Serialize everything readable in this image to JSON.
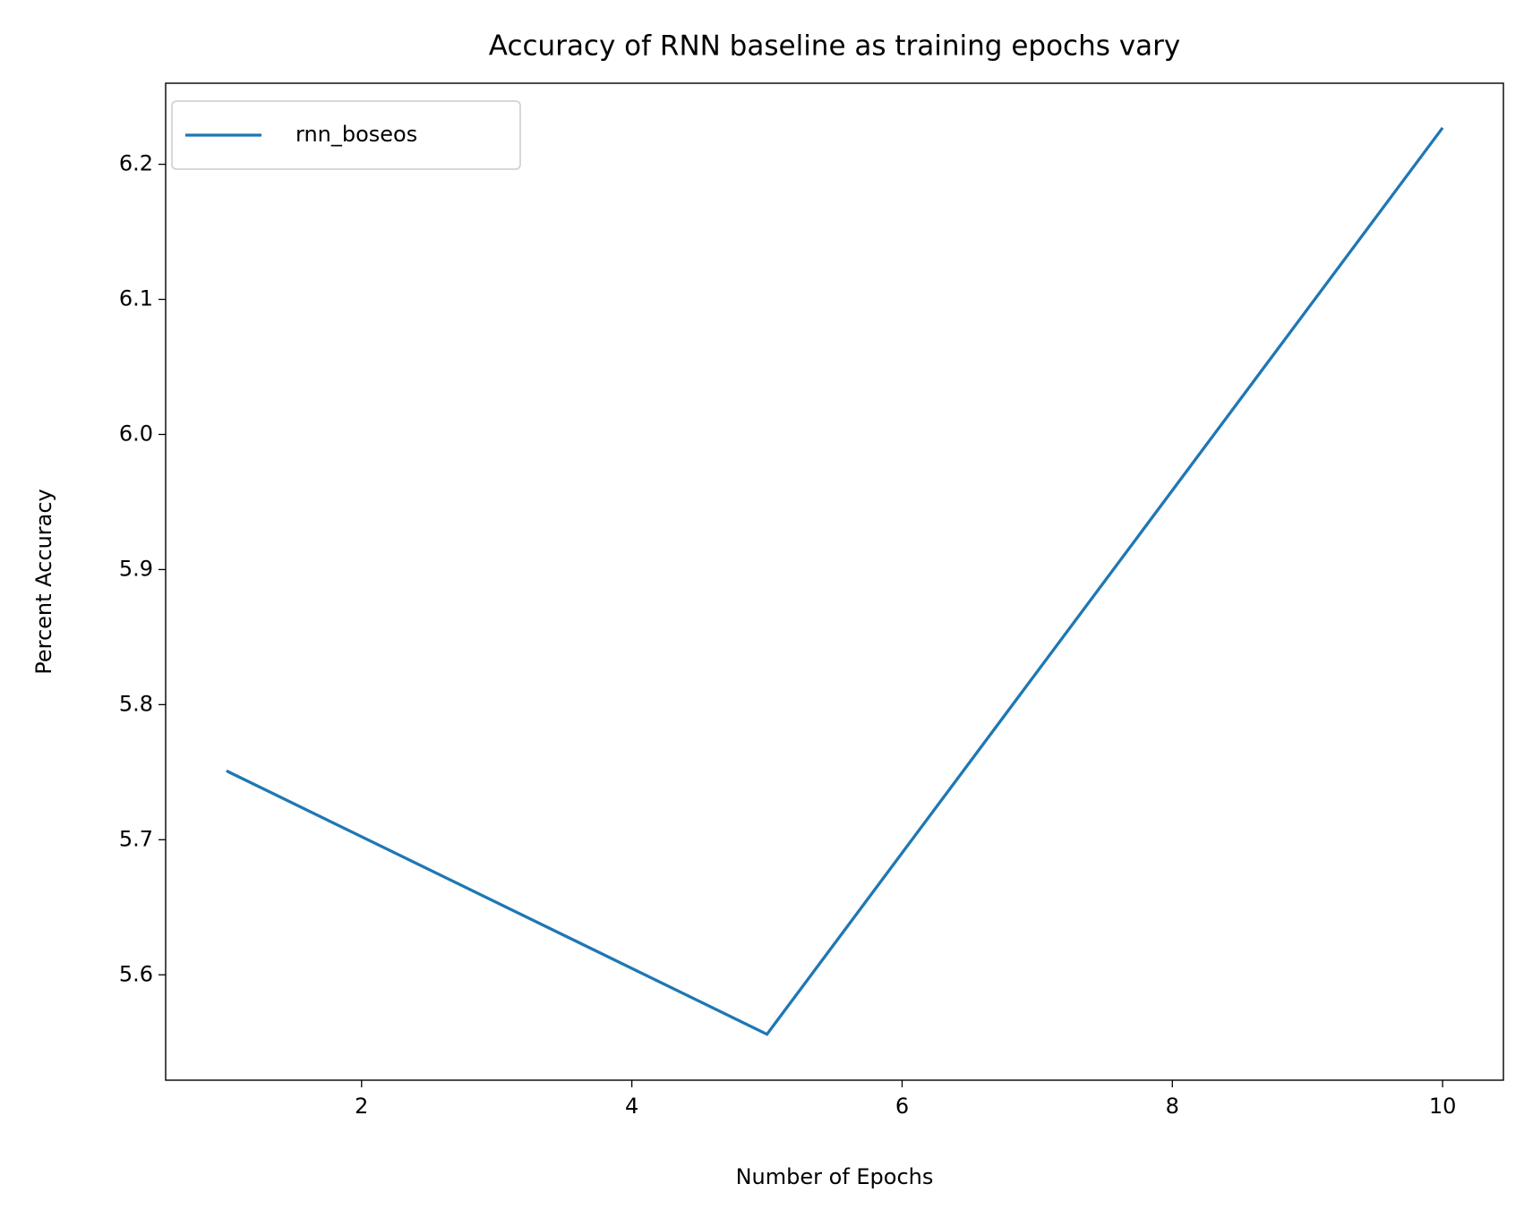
{
  "chart_data": {
    "type": "line",
    "title": "Accuracy of RNN baseline as training epochs vary",
    "x_label": "Number of Epochs",
    "y_label": "Percent Accuracy",
    "x": [
      1,
      5,
      10
    ],
    "series": [
      {
        "name": "rnn_boseos",
        "color": "#1f77b4",
        "values": [
          5.751,
          5.556,
          6.227
        ]
      }
    ],
    "xlim": [
      0.55,
      10.45
    ],
    "ylim": [
      5.522,
      6.26
    ],
    "xticks": [
      2,
      4,
      6,
      8,
      10
    ],
    "yticks": [
      5.6,
      5.7,
      5.8,
      5.9,
      {
        "value": 6,
        "label": "6.0"
      },
      6.1,
      6.2
    ],
    "grid": false,
    "legend": "upper left"
  }
}
